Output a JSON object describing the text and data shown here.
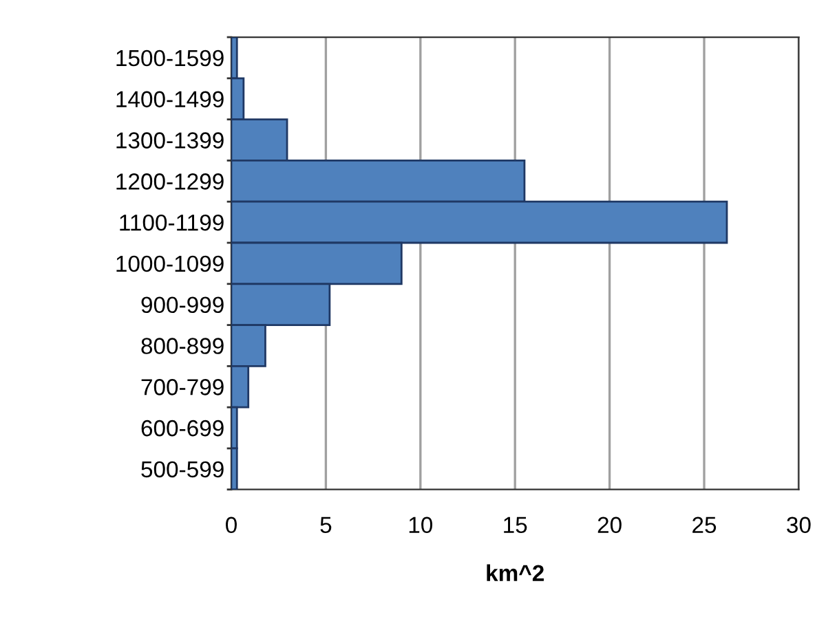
{
  "chart_data": {
    "type": "bar",
    "orientation": "horizontal",
    "xlabel": "km^2",
    "categories": [
      "1500-1599",
      "1400-1499",
      "1300-1399",
      "1200-1299",
      "1100-1199",
      "1000-1099",
      "900-999",
      "800-899",
      "700-799",
      "600-699",
      "500-599"
    ],
    "values": [
      0.3,
      0.65,
      2.95,
      15.5,
      26.2,
      9.0,
      5.2,
      1.8,
      0.9,
      0.3,
      0.3
    ],
    "color": "#4f81bd",
    "xlim": [
      0,
      30
    ],
    "xticks": [
      0,
      5,
      10,
      15,
      20,
      25,
      30
    ],
    "grid": "x",
    "legend": false
  }
}
